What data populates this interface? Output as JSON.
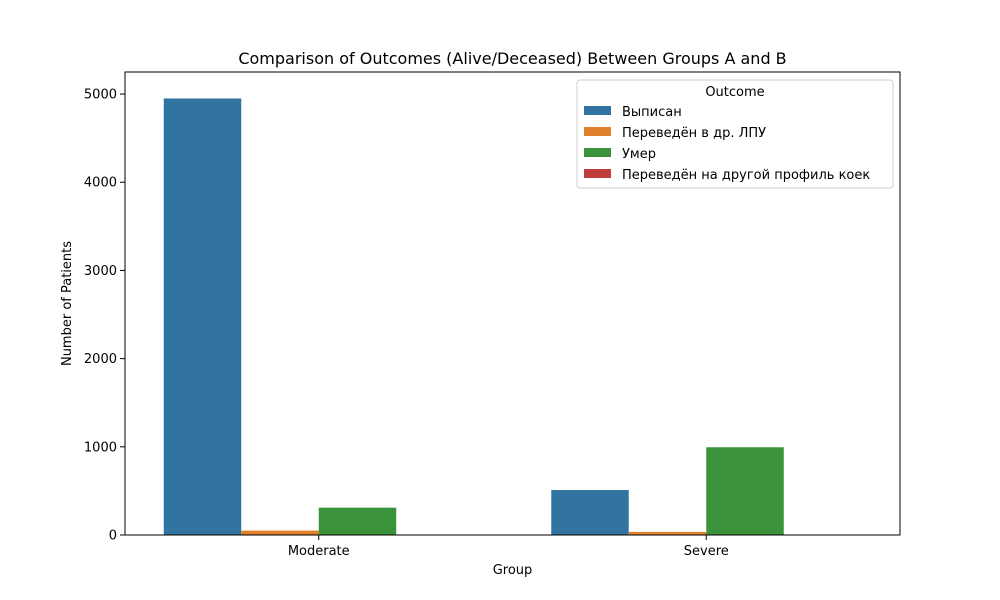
{
  "chart_data": {
    "type": "bar",
    "title": "Comparison of Outcomes (Alive/Deceased) Between Groups A and B",
    "xlabel": "Group",
    "ylabel": "Number of Patients",
    "categories": [
      "Moderate",
      "Severe"
    ],
    "series": [
      {
        "name": "Выписан",
        "values": [
          4950,
          510
        ],
        "color": "#3274a1"
      },
      {
        "name": "Переведён в др. ЛПУ",
        "values": [
          50,
          35
        ],
        "color": "#e1812c"
      },
      {
        "name": "Умер",
        "values": [
          310,
          995
        ],
        "color": "#3a923a"
      },
      {
        "name": "Переведён на другой профиль коек",
        "values": [
          0,
          0
        ],
        "color": "#c03d3e"
      }
    ],
    "ylim": [
      0,
      5250
    ],
    "yticks": [
      0,
      1000,
      2000,
      3000,
      4000,
      5000
    ],
    "legend": {
      "title": "Outcome",
      "placement": "upper-right"
    },
    "grid": false
  }
}
